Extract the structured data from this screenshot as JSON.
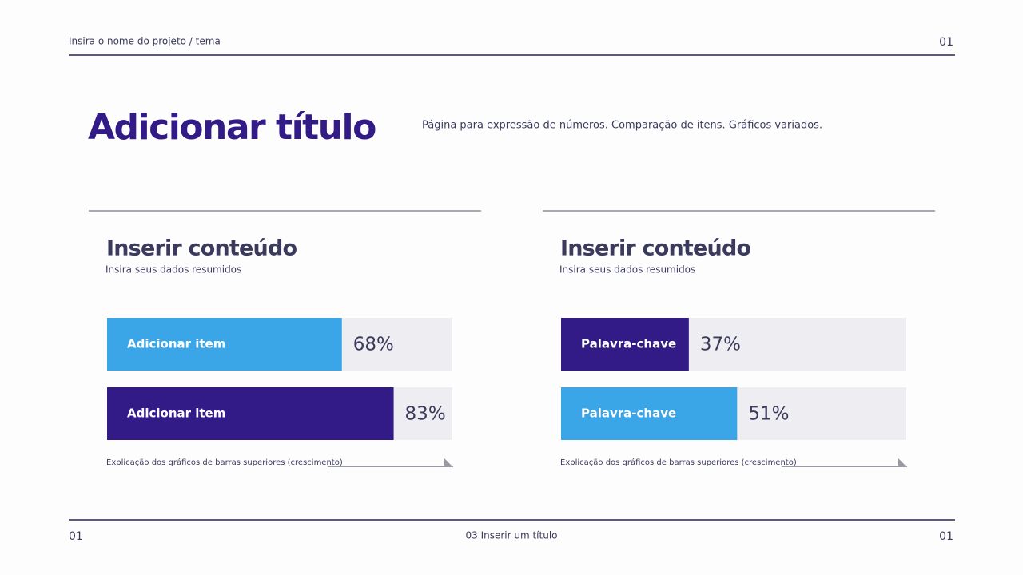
{
  "header": {
    "project": "Insira o nome do projeto / tema",
    "page": "01"
  },
  "title": "Adicionar título",
  "description": "Página para expressão de números. Comparação de itens. Gráficos variados.",
  "chart_data": [
    {
      "type": "bar",
      "title": "Inserir conteúdo",
      "subtitle": "Insira seus dados resumidos",
      "categories": [
        "Adicionar item",
        "Adicionar item"
      ],
      "values": [
        68,
        83
      ],
      "value_labels": [
        "68%",
        "83%"
      ],
      "colors": [
        "#3aa6e8",
        "#321a87"
      ],
      "xlim": [
        0,
        100
      ],
      "caption": "Explicação dos gráficos de barras superiores (crescimento)"
    },
    {
      "type": "bar",
      "title": "Inserir conteúdo",
      "subtitle": "Insira seus dados resumidos",
      "categories": [
        "Palavra-chave",
        "Palavra-chave"
      ],
      "values": [
        37,
        51
      ],
      "value_labels": [
        "37%",
        "51%"
      ],
      "colors": [
        "#321a87",
        "#3aa6e8"
      ],
      "xlim": [
        0,
        100
      ],
      "caption": "Explicação dos gráficos de barras superiores (crescimento)"
    }
  ],
  "footer": {
    "left": "01",
    "center": "03 Inserir um título",
    "right": "01"
  }
}
